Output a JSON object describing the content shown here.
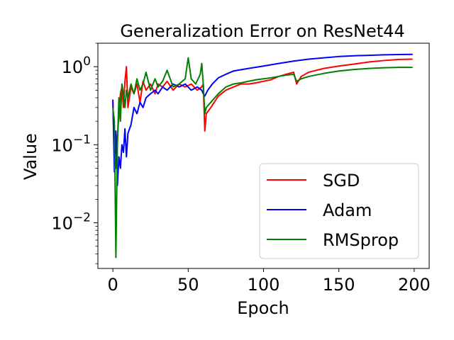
{
  "chart_data": {
    "type": "line",
    "title": "Generalization Error on ResNet44",
    "xlabel": "Epoch",
    "ylabel": "Value",
    "xlim": [
      -9.95,
      209.95
    ],
    "ylim": [
      0.0026,
      2.0
    ],
    "yscale": "log",
    "xticks": [
      0,
      50,
      100,
      150,
      200
    ],
    "yticks": [
      {
        "base": "10",
        "exp": "0",
        "value": 1
      },
      {
        "base": "10",
        "exp": "−1",
        "value": 0.1
      },
      {
        "base": "10",
        "exp": "−2",
        "value": 0.01
      }
    ],
    "grid": false,
    "legend_position": "lower-right",
    "series": [
      {
        "name": "SGD",
        "color": "#ff0000",
        "points": [
          [
            0,
            0.35
          ],
          [
            1,
            0.07
          ],
          [
            2,
            0.05
          ],
          [
            3,
            0.12
          ],
          [
            4,
            0.25
          ],
          [
            5,
            0.45
          ],
          [
            6,
            0.55
          ],
          [
            7,
            0.3
          ],
          [
            8,
            0.65
          ],
          [
            9,
            1.0
          ],
          [
            10,
            0.3
          ],
          [
            12,
            0.55
          ],
          [
            14,
            0.45
          ],
          [
            16,
            0.6
          ],
          [
            18,
            0.35
          ],
          [
            20,
            0.65
          ],
          [
            22,
            0.5
          ],
          [
            25,
            0.6
          ],
          [
            28,
            0.45
          ],
          [
            30,
            0.6
          ],
          [
            33,
            0.55
          ],
          [
            36,
            0.65
          ],
          [
            40,
            0.5
          ],
          [
            44,
            0.6
          ],
          [
            48,
            0.55
          ],
          [
            52,
            0.6
          ],
          [
            56,
            0.5
          ],
          [
            59,
            0.55
          ],
          [
            60,
            0.6
          ],
          [
            61,
            0.15
          ],
          [
            62,
            0.25
          ],
          [
            65,
            0.3
          ],
          [
            70,
            0.42
          ],
          [
            75,
            0.5
          ],
          [
            80,
            0.55
          ],
          [
            85,
            0.6
          ],
          [
            90,
            0.6
          ],
          [
            95,
            0.62
          ],
          [
            100,
            0.65
          ],
          [
            105,
            0.68
          ],
          [
            110,
            0.75
          ],
          [
            115,
            0.8
          ],
          [
            120,
            0.85
          ],
          [
            122,
            0.6
          ],
          [
            125,
            0.75
          ],
          [
            130,
            0.85
          ],
          [
            140,
            0.95
          ],
          [
            150,
            1.02
          ],
          [
            160,
            1.08
          ],
          [
            170,
            1.15
          ],
          [
            180,
            1.2
          ],
          [
            190,
            1.24
          ],
          [
            199,
            1.25
          ]
        ]
      },
      {
        "name": "Adam",
        "color": "#0000ff",
        "points": [
          [
            0,
            0.38
          ],
          [
            1,
            0.045
          ],
          [
            2,
            0.15
          ],
          [
            3,
            0.03
          ],
          [
            4,
            0.07
          ],
          [
            5,
            0.05
          ],
          [
            6,
            0.1
          ],
          [
            7,
            0.08
          ],
          [
            8,
            0.16
          ],
          [
            9,
            0.07
          ],
          [
            10,
            0.14
          ],
          [
            12,
            0.18
          ],
          [
            14,
            0.3
          ],
          [
            16,
            0.25
          ],
          [
            18,
            0.35
          ],
          [
            20,
            0.3
          ],
          [
            22,
            0.4
          ],
          [
            25,
            0.45
          ],
          [
            28,
            0.5
          ],
          [
            30,
            0.45
          ],
          [
            33,
            0.55
          ],
          [
            36,
            0.5
          ],
          [
            40,
            0.6
          ],
          [
            44,
            0.55
          ],
          [
            48,
            0.6
          ],
          [
            52,
            0.5
          ],
          [
            56,
            0.55
          ],
          [
            59,
            0.5
          ],
          [
            60,
            0.45
          ],
          [
            61,
            0.42
          ],
          [
            63,
            0.5
          ],
          [
            66,
            0.6
          ],
          [
            70,
            0.72
          ],
          [
            75,
            0.8
          ],
          [
            80,
            0.88
          ],
          [
            90,
            0.95
          ],
          [
            100,
            1.02
          ],
          [
            110,
            1.1
          ],
          [
            120,
            1.18
          ],
          [
            130,
            1.25
          ],
          [
            140,
            1.3
          ],
          [
            150,
            1.35
          ],
          [
            160,
            1.38
          ],
          [
            170,
            1.4
          ],
          [
            180,
            1.42
          ],
          [
            190,
            1.43
          ],
          [
            199,
            1.44
          ]
        ]
      },
      {
        "name": "RMSprop",
        "color": "#008000",
        "points": [
          [
            0,
            0.3
          ],
          [
            1,
            0.2
          ],
          [
            2,
            0.0036
          ],
          [
            3,
            0.1
          ],
          [
            4,
            0.4
          ],
          [
            5,
            0.2
          ],
          [
            6,
            0.6
          ],
          [
            7,
            0.45
          ],
          [
            8,
            0.3
          ],
          [
            9,
            0.5
          ],
          [
            10,
            0.4
          ],
          [
            12,
            0.6
          ],
          [
            14,
            0.45
          ],
          [
            16,
            0.7
          ],
          [
            18,
            0.5
          ],
          [
            20,
            0.6
          ],
          [
            22,
            0.85
          ],
          [
            25,
            0.5
          ],
          [
            28,
            0.7
          ],
          [
            30,
            0.55
          ],
          [
            33,
            0.65
          ],
          [
            36,
            0.9
          ],
          [
            40,
            0.55
          ],
          [
            44,
            0.6
          ],
          [
            48,
            0.7
          ],
          [
            50,
            1.3
          ],
          [
            52,
            0.7
          ],
          [
            55,
            0.6
          ],
          [
            58,
            0.8
          ],
          [
            59,
            1.1
          ],
          [
            60,
            0.6
          ],
          [
            61,
            0.25
          ],
          [
            62,
            0.3
          ],
          [
            65,
            0.35
          ],
          [
            70,
            0.45
          ],
          [
            75,
            0.55
          ],
          [
            80,
            0.6
          ],
          [
            85,
            0.62
          ],
          [
            90,
            0.65
          ],
          [
            95,
            0.68
          ],
          [
            100,
            0.7
          ],
          [
            105,
            0.72
          ],
          [
            110,
            0.75
          ],
          [
            115,
            0.78
          ],
          [
            120,
            0.8
          ],
          [
            122,
            0.65
          ],
          [
            125,
            0.7
          ],
          [
            130,
            0.75
          ],
          [
            140,
            0.82
          ],
          [
            150,
            0.88
          ],
          [
            160,
            0.92
          ],
          [
            170,
            0.95
          ],
          [
            180,
            0.97
          ],
          [
            190,
            0.98
          ],
          [
            199,
            0.98
          ]
        ]
      }
    ]
  }
}
